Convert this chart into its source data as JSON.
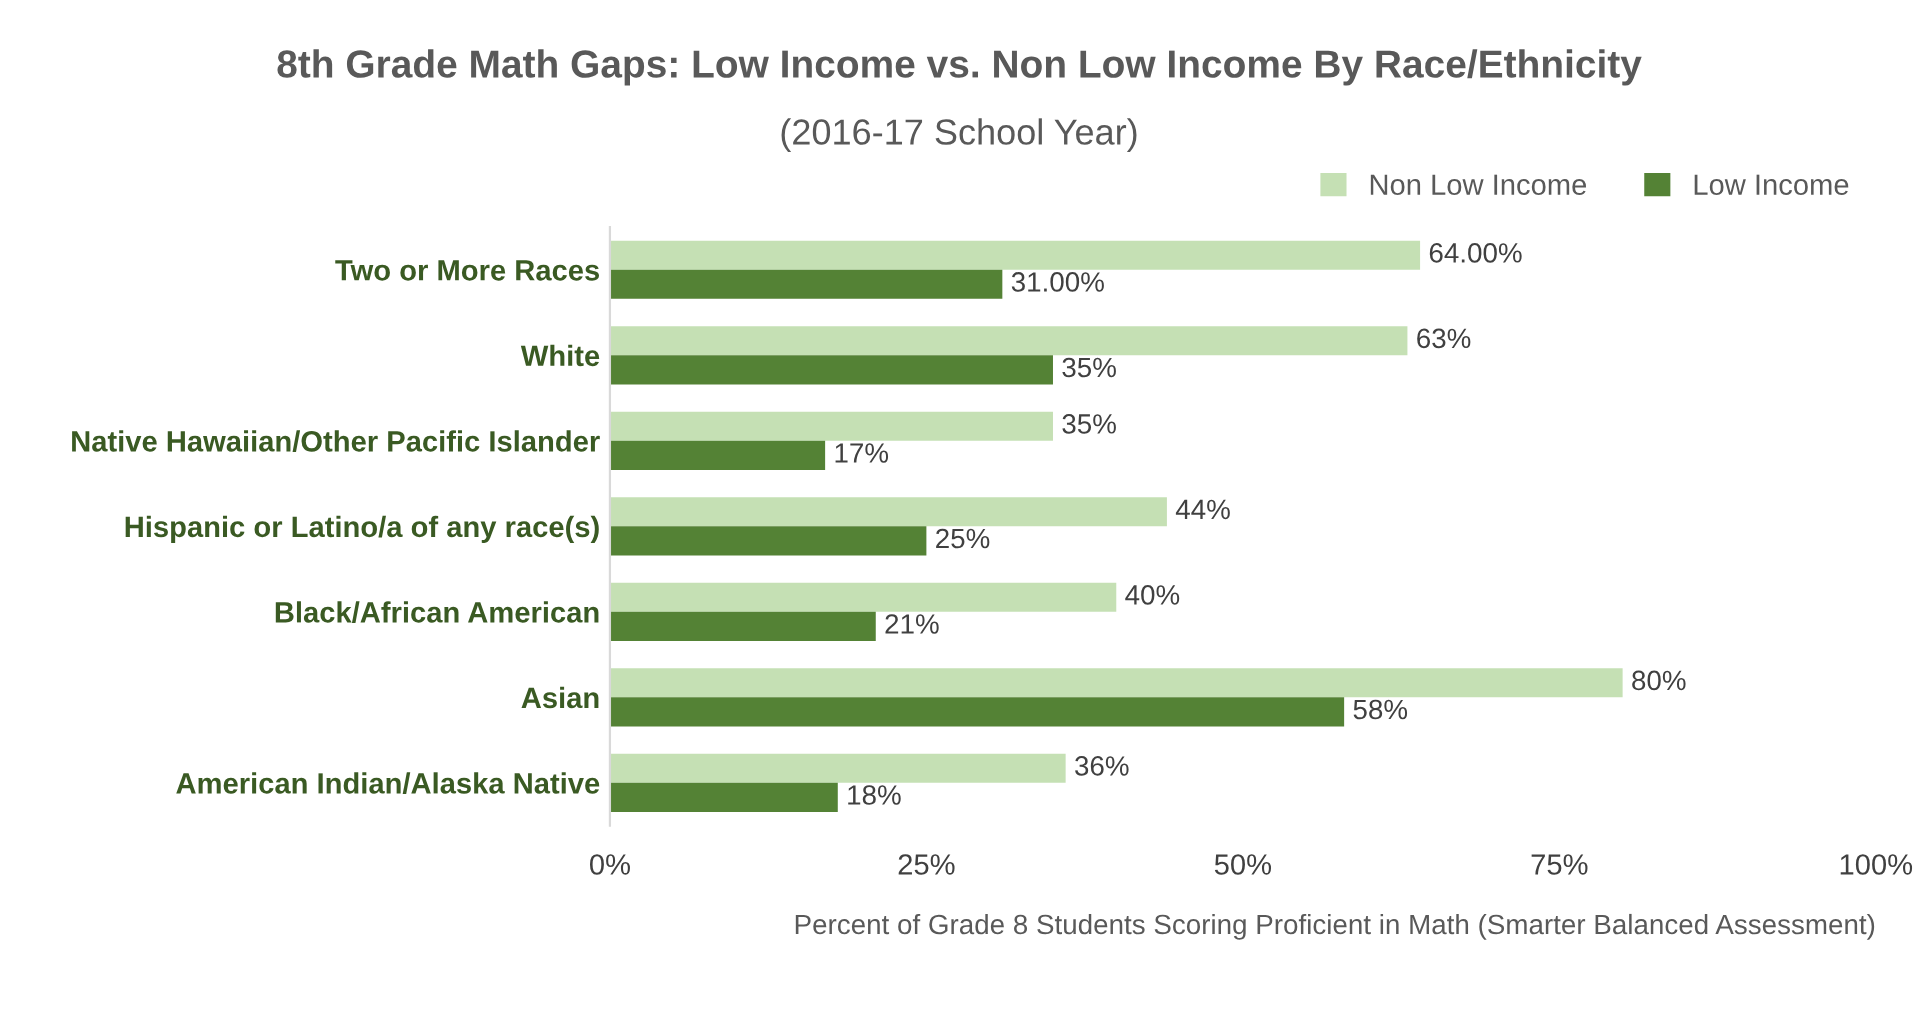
{
  "chart_data": {
    "type": "bar",
    "orientation": "horizontal",
    "title": "8th Grade Math Gaps: Low Income vs. Non Low Income By Race/Ethnicity",
    "subtitle": "(2016-17 School Year)",
    "xlabel": "Percent of Grade 8 Students Scoring Proficient in Math (Smarter Balanced Assessment)",
    "categories": [
      "Two or More Races",
      "White",
      "Native Hawaiian/Other Pacific Islander",
      "Hispanic or Latino/a of any race(s)",
      "Black/African American",
      "Asian",
      "American Indian/Alaska Native"
    ],
    "series": [
      {
        "name": "Non Low Income",
        "color": "#c5e0b4",
        "values": [
          64,
          63,
          35,
          44,
          40,
          80,
          36
        ],
        "value_labels": [
          "64.00%",
          "63%",
          "35%",
          "44%",
          "40%",
          "80%",
          "36%"
        ]
      },
      {
        "name": "Low Income",
        "color": "#548235",
        "values": [
          31,
          35,
          17,
          25,
          21,
          58,
          18
        ],
        "value_labels": [
          "31.00%",
          "35%",
          "17%",
          "25%",
          "21%",
          "58%",
          "18%"
        ]
      }
    ],
    "xlim": [
      0,
      100
    ],
    "xticks": [
      {
        "value": 0,
        "label": "0%"
      },
      {
        "value": 25,
        "label": "25%"
      },
      {
        "value": 50,
        "label": "50%"
      },
      {
        "value": 75,
        "label": "75%"
      },
      {
        "value": 100,
        "label": "100%"
      }
    ],
    "legend": "top right",
    "grid": false
  }
}
